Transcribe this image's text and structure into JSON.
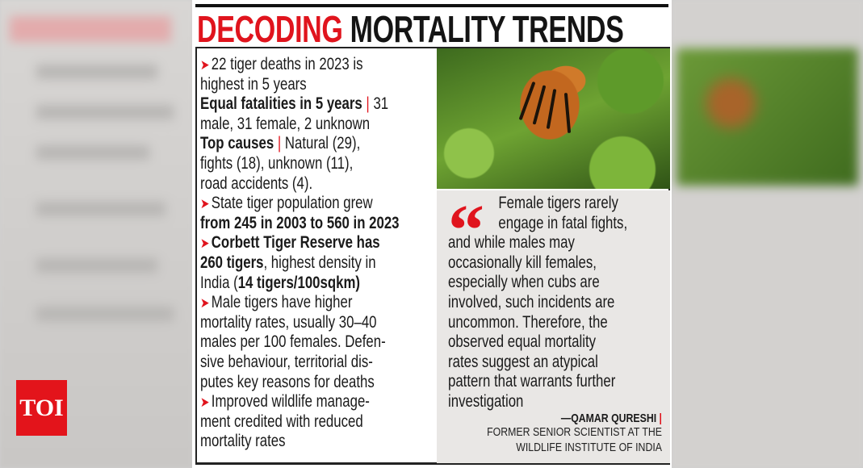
{
  "logo": "TOI",
  "title": {
    "red": "DECODING",
    "black": "MORTALITY TRENDS"
  },
  "colors": {
    "accent": "#e0141d",
    "text": "#1a1a1a",
    "quote_bg": "#e9e7e5"
  },
  "facts": [
    {
      "bullet": true,
      "segs": [
        {
          "t": "22 tiger deaths in 2023 is"
        }
      ]
    },
    {
      "segs": [
        {
          "t": "highest in 5 years"
        }
      ]
    },
    {
      "segs": [
        {
          "t": "Equal fatalities in 5 years",
          "b": true
        },
        {
          "t": " | ",
          "p": true
        },
        {
          "t": "31"
        }
      ]
    },
    {
      "segs": [
        {
          "t": "male, 31 female, 2 unknown"
        }
      ]
    },
    {
      "segs": [
        {
          "t": "Top causes",
          "b": true
        },
        {
          "t": " | ",
          "p": true
        },
        {
          "t": "Natural (29),"
        }
      ]
    },
    {
      "segs": [
        {
          "t": "fights (18), unknown (11),"
        }
      ]
    },
    {
      "segs": [
        {
          "t": "road accidents (4)."
        }
      ]
    },
    {
      "bullet": true,
      "segs": [
        {
          "t": "State tiger population grew"
        }
      ]
    },
    {
      "segs": [
        {
          "t": "from 245 in 2003 to 560 in 2023",
          "b": true
        }
      ]
    },
    {
      "bullet": true,
      "segs": [
        {
          "t": "Corbett Tiger Reserve has",
          "b": true
        }
      ]
    },
    {
      "segs": [
        {
          "t": "260 tigers",
          "b": true
        },
        {
          "t": ", highest density in"
        }
      ]
    },
    {
      "segs": [
        {
          "t": "India ("
        },
        {
          "t": "14 tigers/100sqkm)",
          "b": true
        }
      ]
    },
    {
      "bullet": true,
      "segs": [
        {
          "t": "Male tigers have higher"
        }
      ]
    },
    {
      "segs": [
        {
          "t": "mortality rates, usually 30–40"
        }
      ]
    },
    {
      "segs": [
        {
          "t": "males per 100 females. Defen-"
        }
      ]
    },
    {
      "segs": [
        {
          "t": "sive behaviour, territorial dis-"
        }
      ]
    },
    {
      "segs": [
        {
          "t": "putes key reasons for deaths"
        }
      ]
    },
    {
      "bullet": true,
      "segs": [
        {
          "t": "Improved wildlife manage-"
        }
      ]
    },
    {
      "segs": [
        {
          "t": "ment credited with reduced"
        }
      ]
    },
    {
      "segs": [
        {
          "t": "mortality rates"
        }
      ]
    }
  ],
  "bullet_icon": "➤",
  "quote": {
    "mark": "“",
    "lines": [
      "Female tigers rarely",
      "engage in fatal fights,",
      "and while males may",
      "occasionally kill females,",
      "especially when cubs are",
      "involved, such incidents are",
      "uncommon. Therefore, the",
      "observed equal mortality",
      "rates suggest an atypical",
      "pattern that warrants further",
      "investigation"
    ],
    "author": "—QAMAR QURESHI",
    "designation": [
      "FORMER SENIOR SCIENTIST AT THE",
      "WILDLIFE INSTITUTE OF INDIA"
    ]
  },
  "photo": "tiger-in-forest"
}
